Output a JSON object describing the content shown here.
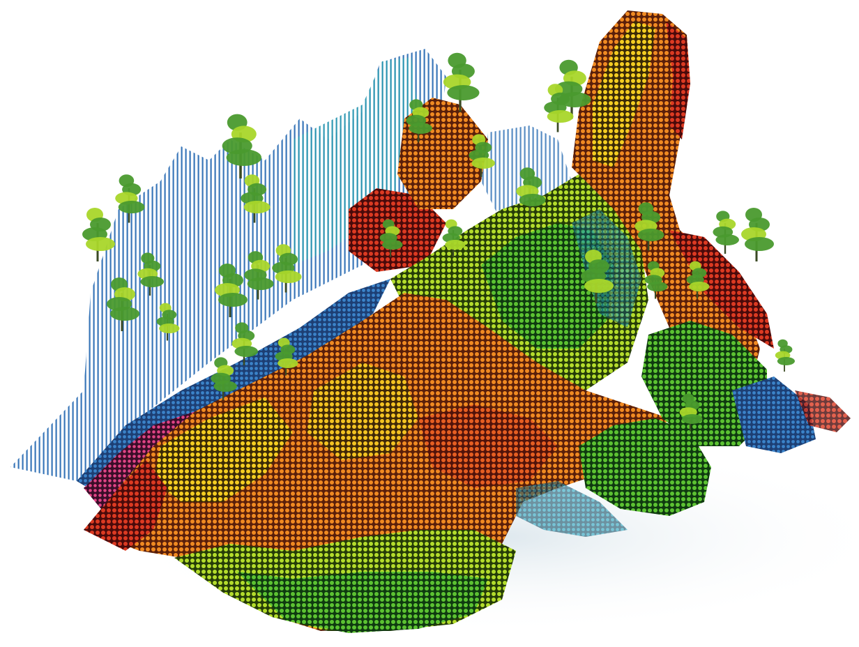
{
  "image": {
    "subject": "point-cloud-terrain",
    "background_color": "#ffffff",
    "palette": {
      "blue": "#2f6fb5",
      "teal": "#2a9bb0",
      "green": "#4fb32e",
      "lime": "#a9d62a",
      "yellow": "#f2c81f",
      "orange": "#ec7a1c",
      "red": "#d8321f",
      "magenta": "#d63a7a",
      "tree_green": "#4a9a2e",
      "shadow": "#e6eef2"
    }
  }
}
